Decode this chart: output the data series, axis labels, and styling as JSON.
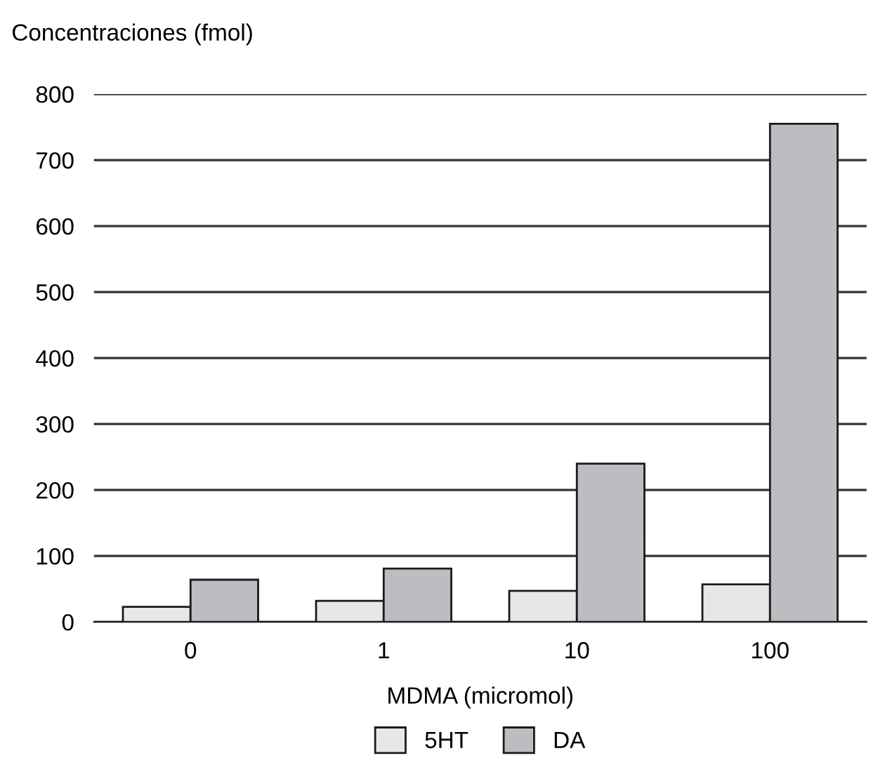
{
  "chart_data": {
    "type": "bar",
    "ylabel": "Concentraciones (fmol)",
    "xlabel": "MDMA (micromol)",
    "categories": [
      "0",
      "1",
      "10",
      "100"
    ],
    "series": [
      {
        "name": "5HT",
        "color": "#e6e7e8",
        "values": [
          23,
          32,
          47,
          57
        ]
      },
      {
        "name": "DA",
        "color": "#bcbdc0",
        "values": [
          64,
          81,
          240,
          755
        ]
      }
    ],
    "ylim": [
      0,
      800
    ],
    "yticks": [
      0,
      100,
      200,
      300,
      400,
      500,
      600,
      700,
      800
    ],
    "grid": "y",
    "legend": "bottom"
  }
}
